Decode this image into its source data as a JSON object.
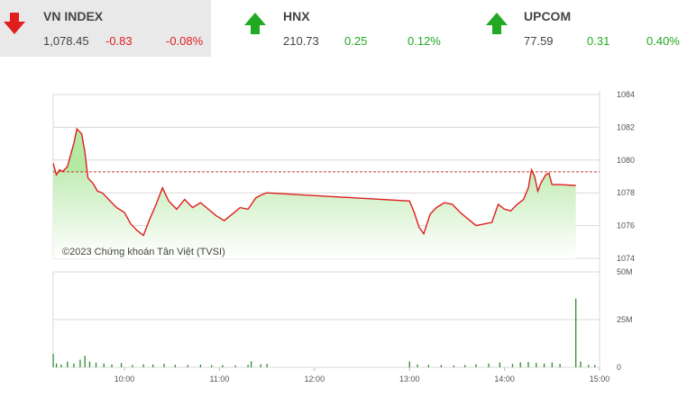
{
  "tiles": [
    {
      "name": "VN INDEX",
      "value": "1,078.45",
      "change": "-0.83",
      "pct": "-0.08%",
      "direction": "down",
      "active": true
    },
    {
      "name": "HNX",
      "value": "210.73",
      "change": "0.25",
      "pct": "0.12%",
      "direction": "up",
      "active": false
    },
    {
      "name": "UPCOM",
      "value": "77.59",
      "change": "0.31",
      "pct": "0.40%",
      "direction": "up",
      "active": false
    }
  ],
  "colors": {
    "down": "#e01e1e",
    "up": "#22a922",
    "line": "#e01e1e",
    "area": "#b5eaa5",
    "volume": "#2e8b2e",
    "reference": "#c0392b"
  },
  "watermark": "©2023 Chứng khoán Tân Việt (TVSI)",
  "chart_data": {
    "type": "area",
    "reference": 1079.28,
    "price_axis": {
      "ylim": [
        1074,
        1084
      ],
      "ticks": [
        "1084",
        "1082",
        "1080",
        "1078",
        "1076",
        "1074"
      ]
    },
    "volume_axis": {
      "ylim": [
        0,
        50
      ],
      "ticks": [
        "50M",
        "25M",
        "0"
      ]
    },
    "time_axis": {
      "ticks": [
        "10:00",
        "11:00",
        "12:00",
        "13:00",
        "14:00",
        "15:00"
      ]
    },
    "price": [
      [
        "09:15",
        1079.8
      ],
      [
        "09:17",
        1079.1
      ],
      [
        "09:19",
        1079.4
      ],
      [
        "09:21",
        1079.3
      ],
      [
        "09:24",
        1079.6
      ],
      [
        "09:26",
        1080.3
      ],
      [
        "09:28",
        1081.0
      ],
      [
        "09:30",
        1081.9
      ],
      [
        "09:33",
        1081.6
      ],
      [
        "09:35",
        1080.5
      ],
      [
        "09:37",
        1078.9
      ],
      [
        "09:40",
        1078.6
      ],
      [
        "09:43",
        1078.1
      ],
      [
        "09:46",
        1078.0
      ],
      [
        "09:50",
        1077.6
      ],
      [
        "09:55",
        1077.1
      ],
      [
        "10:00",
        1076.8
      ],
      [
        "10:04",
        1076.1
      ],
      [
        "10:08",
        1075.7
      ],
      [
        "10:12",
        1075.4
      ],
      [
        "10:16",
        1076.4
      ],
      [
        "10:20",
        1077.3
      ],
      [
        "10:24",
        1078.3
      ],
      [
        "10:28",
        1077.5
      ],
      [
        "10:33",
        1077.0
      ],
      [
        "10:38",
        1077.6
      ],
      [
        "10:43",
        1077.1
      ],
      [
        "10:48",
        1077.4
      ],
      [
        "10:53",
        1077.0
      ],
      [
        "10:58",
        1076.6
      ],
      [
        "11:03",
        1076.3
      ],
      [
        "11:08",
        1076.7
      ],
      [
        "11:13",
        1077.1
      ],
      [
        "11:18",
        1077.0
      ],
      [
        "11:23",
        1077.7
      ],
      [
        "11:27",
        1077.9
      ],
      [
        "11:30",
        1078.0
      ],
      [
        "13:00",
        1077.5
      ],
      [
        "13:03",
        1076.8
      ],
      [
        "13:06",
        1075.9
      ],
      [
        "13:09",
        1075.5
      ],
      [
        "13:13",
        1076.7
      ],
      [
        "13:17",
        1077.1
      ],
      [
        "13:22",
        1077.4
      ],
      [
        "13:27",
        1077.3
      ],
      [
        "13:32",
        1076.8
      ],
      [
        "13:37",
        1076.4
      ],
      [
        "13:42",
        1076.0
      ],
      [
        "13:47",
        1076.1
      ],
      [
        "13:52",
        1076.2
      ],
      [
        "13:56",
        1077.3
      ],
      [
        "14:00",
        1077.0
      ],
      [
        "14:04",
        1076.9
      ],
      [
        "14:08",
        1077.3
      ],
      [
        "14:12",
        1077.6
      ],
      [
        "14:15",
        1078.3
      ],
      [
        "14:17",
        1079.4
      ],
      [
        "14:19",
        1079.0
      ],
      [
        "14:21",
        1078.1
      ],
      [
        "14:23",
        1078.6
      ],
      [
        "14:26",
        1079.1
      ],
      [
        "14:28",
        1079.2
      ],
      [
        "14:30",
        1078.5
      ],
      [
        "14:35",
        1078.5
      ],
      [
        "14:45",
        1078.45
      ]
    ],
    "volume": [
      [
        "09:15",
        7
      ],
      [
        "09:17",
        2
      ],
      [
        "09:20",
        1.5
      ],
      [
        "09:24",
        3
      ],
      [
        "09:28",
        2
      ],
      [
        "09:32",
        4
      ],
      [
        "09:35",
        6
      ],
      [
        "09:38",
        3
      ],
      [
        "09:42",
        2.5
      ],
      [
        "09:47",
        2
      ],
      [
        "09:52",
        1.5
      ],
      [
        "09:58",
        2.2
      ],
      [
        "10:05",
        1.2
      ],
      [
        "10:12",
        1.6
      ],
      [
        "10:18",
        1.5
      ],
      [
        "10:25",
        1.8
      ],
      [
        "10:32",
        1.3
      ],
      [
        "10:40",
        1.2
      ],
      [
        "10:48",
        1.4
      ],
      [
        "10:55",
        1.1
      ],
      [
        "11:02",
        1.2
      ],
      [
        "11:10",
        1.0
      ],
      [
        "11:18",
        1.3
      ],
      [
        "11:20",
        3.2
      ],
      [
        "11:26",
        1.6
      ],
      [
        "11:30",
        1.8
      ],
      [
        "13:00",
        3.0
      ],
      [
        "13:05",
        1.5
      ],
      [
        "13:12",
        1.3
      ],
      [
        "13:20",
        1.2
      ],
      [
        "13:28",
        1.0
      ],
      [
        "13:35",
        1.2
      ],
      [
        "13:42",
        1.6
      ],
      [
        "13:50",
        2.0
      ],
      [
        "13:57",
        2.5
      ],
      [
        "14:05",
        1.8
      ],
      [
        "14:10",
        2.6
      ],
      [
        "14:15",
        2.8
      ],
      [
        "14:20",
        2.3
      ],
      [
        "14:25",
        2.0
      ],
      [
        "14:30",
        2.6
      ],
      [
        "14:35",
        1.8
      ],
      [
        "14:45",
        36
      ],
      [
        "14:48",
        3.0
      ],
      [
        "14:53",
        1.3
      ],
      [
        "14:57",
        1.2
      ]
    ]
  }
}
